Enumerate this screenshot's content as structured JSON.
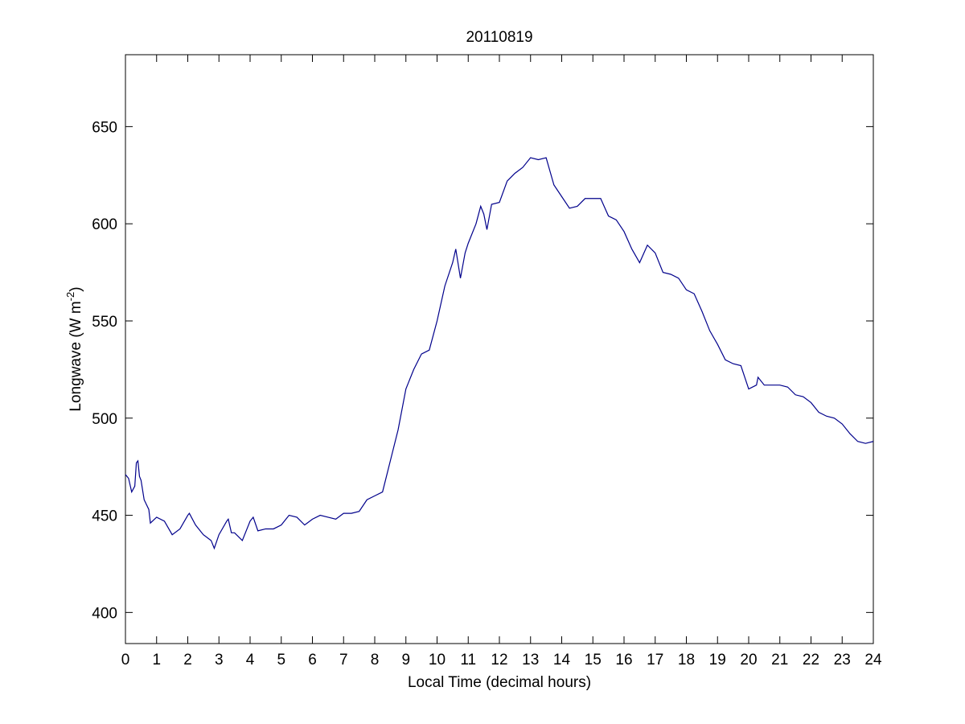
{
  "chart_data": {
    "type": "line",
    "title": "20110819",
    "xlabel": "Local Time (decimal hours)",
    "ylabel_parts": [
      "Longwave (W m",
      "-2",
      ")"
    ],
    "xlim": [
      0,
      24
    ],
    "xticks": [
      0,
      1,
      2,
      3,
      4,
      5,
      6,
      7,
      8,
      9,
      10,
      11,
      12,
      13,
      14,
      15,
      16,
      17,
      18,
      19,
      20,
      21,
      22,
      23,
      24
    ],
    "ylim": [
      384,
      687
    ],
    "yticks": [
      400,
      450,
      500,
      550,
      600,
      650
    ],
    "grid": false,
    "series": [
      {
        "color": "#00008b",
        "x": [
          0,
          0.1,
          0.2,
          0.3,
          0.35,
          0.4,
          0.45,
          0.5,
          0.6,
          0.75,
          0.8,
          1.0,
          1.25,
          1.5,
          1.75,
          2.0,
          2.05,
          2.25,
          2.5,
          2.75,
          2.85,
          3.0,
          3.25,
          3.3,
          3.4,
          3.5,
          3.75,
          4.0,
          4.1,
          4.25,
          4.5,
          4.75,
          5.0,
          5.25,
          5.5,
          5.75,
          6.0,
          6.25,
          6.5,
          6.75,
          7.0,
          7.25,
          7.5,
          7.75,
          8.0,
          8.25,
          8.5,
          8.75,
          9.0,
          9.25,
          9.5,
          9.75,
          10.0,
          10.25,
          10.5,
          10.6,
          10.75,
          10.9,
          11.0,
          11.25,
          11.4,
          11.5,
          11.6,
          11.75,
          12.0,
          12.25,
          12.5,
          12.75,
          13.0,
          13.25,
          13.5,
          13.75,
          14.0,
          14.25,
          14.5,
          14.75,
          15.0,
          15.25,
          15.5,
          15.75,
          16.0,
          16.25,
          16.5,
          16.75,
          17.0,
          17.25,
          17.5,
          17.75,
          18.0,
          18.25,
          18.5,
          18.75,
          19.0,
          19.25,
          19.5,
          19.75,
          20.0,
          20.25,
          20.3,
          20.5,
          21.0,
          21.25,
          21.5,
          21.75,
          22.0,
          22.25,
          22.5,
          22.75,
          23.0,
          23.25,
          23.5,
          23.75,
          24.0
        ],
        "values": [
          471,
          469,
          462,
          465,
          477,
          478,
          470,
          468,
          458,
          453,
          446,
          449,
          447,
          440,
          443,
          450,
          451,
          445,
          440,
          437,
          433,
          440,
          447,
          448,
          441,
          441,
          437,
          447,
          449,
          442,
          443,
          443,
          445,
          450,
          449,
          445,
          448,
          450,
          449,
          448,
          451,
          451,
          452,
          458,
          460,
          462,
          478,
          494,
          515,
          525,
          533,
          535,
          550,
          568,
          580,
          587,
          572,
          585,
          590,
          600,
          609,
          605,
          597,
          610,
          611,
          622,
          626,
          629,
          634,
          633,
          634,
          620,
          614,
          608,
          609,
          613,
          613,
          613,
          604,
          602,
          596,
          587,
          580,
          589,
          585,
          575,
          574,
          572,
          566,
          564,
          555,
          545,
          538,
          530,
          528,
          527,
          515,
          517,
          521,
          517,
          517,
          516,
          512,
          511,
          508,
          503,
          501,
          500,
          497,
          492,
          488,
          487,
          488
        ]
      }
    ]
  }
}
